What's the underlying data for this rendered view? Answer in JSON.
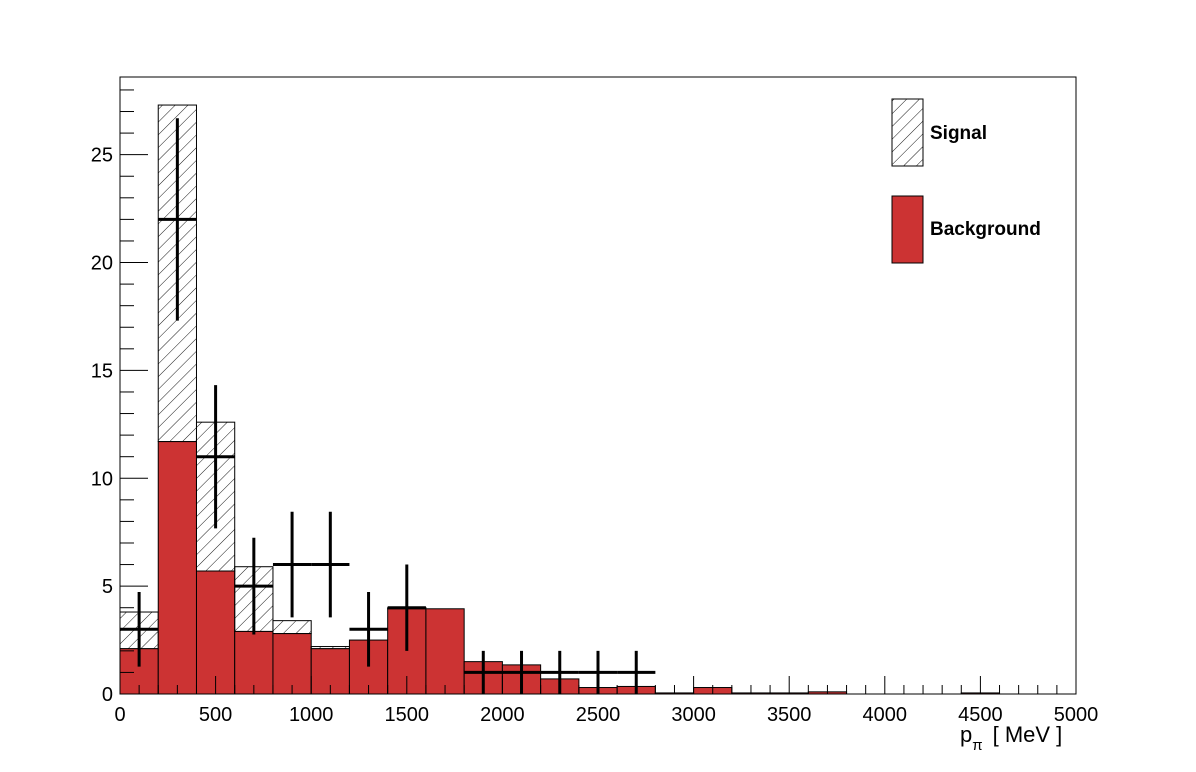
{
  "chart_data": {
    "type": "bar",
    "title": "",
    "xlabel": "p",
    "xlabel_sub": "π",
    "xlabel_unit": "[ MeV ]",
    "ylabel": "",
    "xlim": [
      0,
      5000
    ],
    "ylim": [
      0,
      28.6
    ],
    "x_ticks": [
      0,
      500,
      1000,
      1500,
      2000,
      2500,
      3000,
      3500,
      4000,
      4500,
      5000
    ],
    "y_ticks": [
      0,
      5,
      10,
      15,
      20,
      25
    ],
    "bin_edges": [
      0,
      200,
      400,
      600,
      800,
      1000,
      1200,
      1400,
      1600,
      1800,
      2000,
      2200,
      2400,
      2600,
      2800,
      3000,
      3200,
      3400,
      3600,
      3800,
      4000,
      4200,
      4400,
      4600,
      4800,
      5000
    ],
    "stacked": true,
    "series": [
      {
        "name": "Background",
        "color": "#cc3333",
        "fill": "solid",
        "values": [
          2.1,
          11.7,
          5.7,
          2.9,
          2.8,
          2.1,
          2.5,
          3.95,
          3.95,
          1.5,
          1.35,
          0.7,
          0.3,
          0.35,
          0.05,
          0.3,
          0.05,
          0.05,
          0.1,
          0.0,
          0.0,
          0.0,
          0.05,
          0.0,
          0.0
        ]
      },
      {
        "name": "Signal",
        "color": "#000000",
        "fill": "hatched",
        "values": [
          1.7,
          15.6,
          6.9,
          3.0,
          0.6,
          0.1,
          0.0,
          0.05,
          0.0,
          0.0,
          0.0,
          0.0,
          0.0,
          0.0,
          0.0,
          0.0,
          0.0,
          0.0,
          0.0,
          0.0,
          0.0,
          0.0,
          0.0,
          0.0,
          0.0
        ]
      }
    ],
    "data_points": [
      {
        "x": 100,
        "y": 3,
        "err": 1.73
      },
      {
        "x": 300,
        "y": 22,
        "err": 4.69
      },
      {
        "x": 500,
        "y": 11,
        "err": 3.32
      },
      {
        "x": 700,
        "y": 5,
        "err": 2.24
      },
      {
        "x": 900,
        "y": 6,
        "err": 2.45
      },
      {
        "x": 1100,
        "y": 6,
        "err": 2.45
      },
      {
        "x": 1300,
        "y": 3,
        "err": 1.73
      },
      {
        "x": 1500,
        "y": 4,
        "err": 2.0
      },
      {
        "x": 1900,
        "y": 1,
        "err": 1.0
      },
      {
        "x": 2100,
        "y": 1,
        "err": 1.0
      },
      {
        "x": 2300,
        "y": 1,
        "err": 1.0
      },
      {
        "x": 2500,
        "y": 1,
        "err": 1.0
      },
      {
        "x": 2700,
        "y": 1,
        "err": 1.0
      }
    ],
    "data_point_xerr": 100,
    "legend": {
      "position": "top-right",
      "entries": [
        {
          "label": "Signal",
          "style": "hatched"
        },
        {
          "label": "Background",
          "style": "solid",
          "color": "#cc3333"
        }
      ]
    },
    "grid": false
  }
}
